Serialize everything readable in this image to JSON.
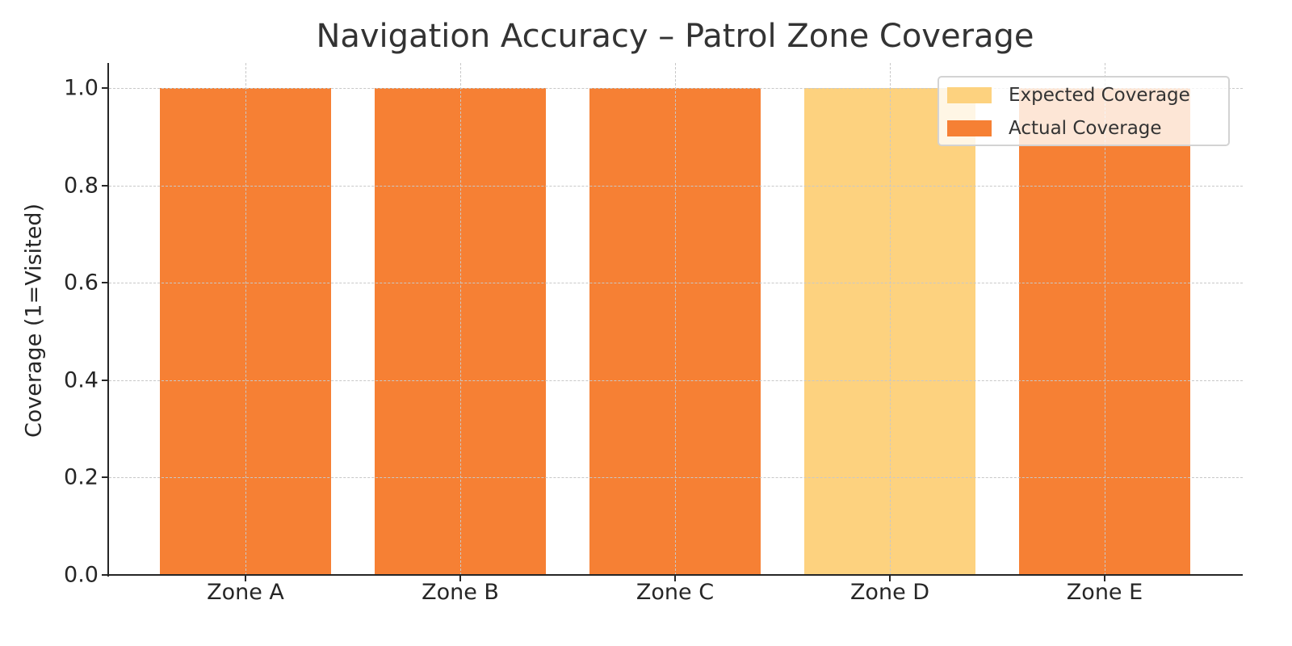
{
  "chart_data": {
    "type": "bar",
    "title": "Navigation Accuracy – Patrol Zone Coverage",
    "xlabel": "",
    "ylabel": "Coverage (1=Visited)",
    "categories": [
      "Zone A",
      "Zone B",
      "Zone C",
      "Zone D",
      "Zone E"
    ],
    "series": [
      {
        "name": "Expected Coverage",
        "color": "#fdd27f",
        "values": [
          1,
          1,
          1,
          1,
          1
        ]
      },
      {
        "name": "Actual Coverage",
        "color": "#f68034",
        "values": [
          1,
          1,
          1,
          0,
          1
        ]
      }
    ],
    "ylim": [
      0,
      1.05
    ],
    "yticks": [
      "0.0",
      "0.2",
      "0.4",
      "0.6",
      "0.8",
      "1.0"
    ],
    "grid": true,
    "legend_position": "upper right",
    "bar_mode": "overlay"
  },
  "legend": {
    "items": [
      {
        "label": "Expected Coverage",
        "color": "#fdd27f"
      },
      {
        "label": "Actual Coverage",
        "color": "#f68034"
      }
    ]
  }
}
